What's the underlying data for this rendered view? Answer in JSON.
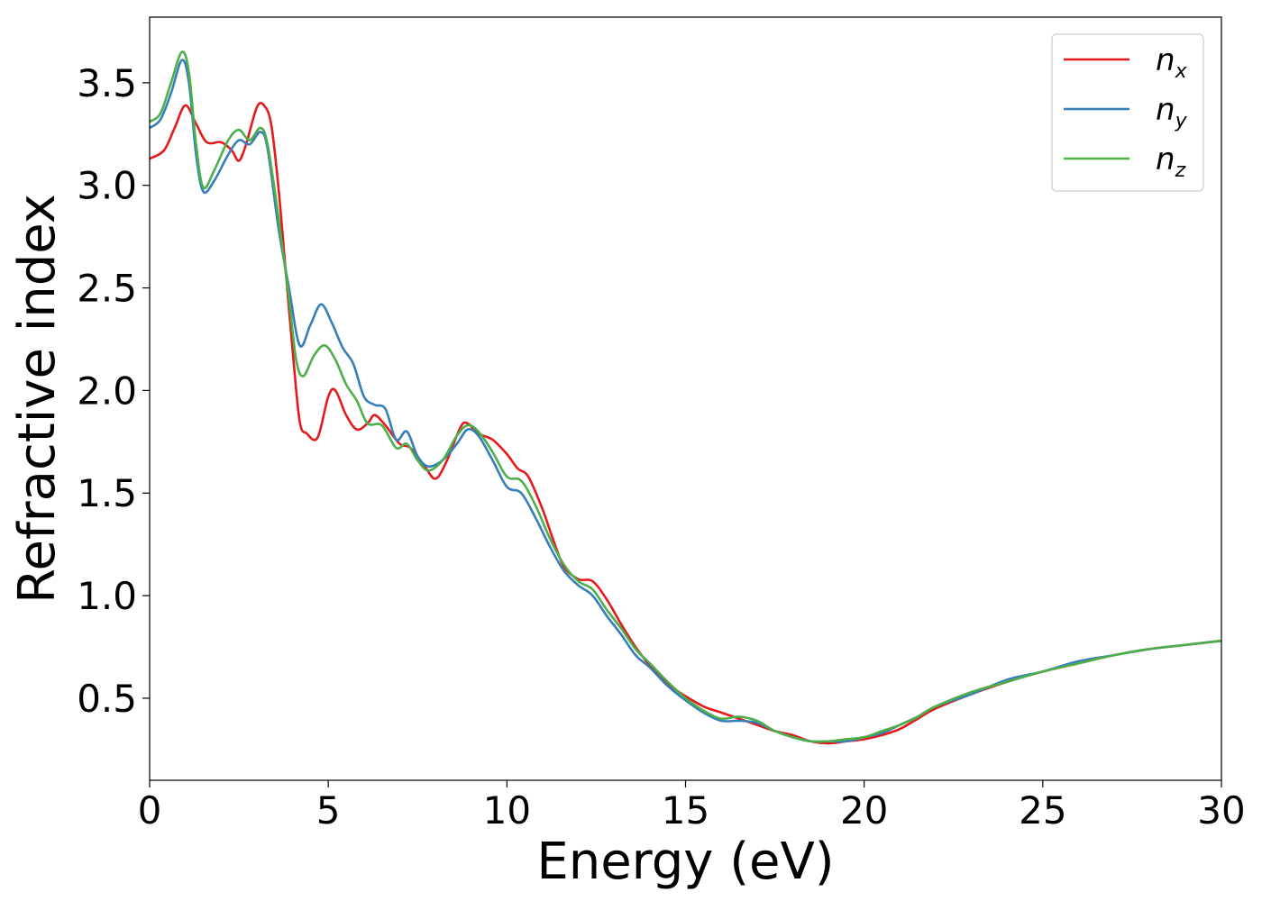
{
  "chart_data": {
    "type": "line",
    "title": "",
    "xlabel": "Energy (eV)",
    "ylabel": "Refractive index",
    "xlim": [
      0,
      30
    ],
    "ylim": [
      0.1,
      3.82
    ],
    "xticks": [
      0,
      5,
      10,
      15,
      20,
      25,
      30
    ],
    "xtick_labels": [
      "0",
      "5",
      "10",
      "15",
      "20",
      "25",
      "30"
    ],
    "yticks": [
      0.5,
      1.0,
      1.5,
      2.0,
      2.5,
      3.0,
      3.5
    ],
    "ytick_labels": [
      "0.5",
      "1.0",
      "1.5",
      "2.0",
      "2.5",
      "3.0",
      "3.5"
    ],
    "grid": false,
    "legend": "top-right",
    "series": [
      {
        "name": "n",
        "subscript": "x",
        "color": "#e41a1c",
        "points": [
          [
            0,
            3.13
          ],
          [
            0.4,
            3.17
          ],
          [
            0.7,
            3.28
          ],
          [
            1.0,
            3.39
          ],
          [
            1.3,
            3.3
          ],
          [
            1.6,
            3.21
          ],
          [
            2.0,
            3.21
          ],
          [
            2.3,
            3.17
          ],
          [
            2.5,
            3.12
          ],
          [
            2.7,
            3.2
          ],
          [
            3.0,
            3.38
          ],
          [
            3.2,
            3.39
          ],
          [
            3.4,
            3.3
          ],
          [
            3.6,
            3.0
          ],
          [
            3.8,
            2.6
          ],
          [
            4.0,
            2.2
          ],
          [
            4.2,
            1.85
          ],
          [
            4.4,
            1.79
          ],
          [
            4.7,
            1.77
          ],
          [
            5.0,
            1.97
          ],
          [
            5.2,
            2.0
          ],
          [
            5.5,
            1.88
          ],
          [
            5.8,
            1.81
          ],
          [
            6.1,
            1.84
          ],
          [
            6.3,
            1.88
          ],
          [
            6.6,
            1.83
          ],
          [
            7.0,
            1.74
          ],
          [
            7.3,
            1.72
          ],
          [
            7.7,
            1.63
          ],
          [
            8.0,
            1.57
          ],
          [
            8.3,
            1.65
          ],
          [
            8.7,
            1.82
          ],
          [
            8.9,
            1.84
          ],
          [
            9.2,
            1.79
          ],
          [
            9.6,
            1.76
          ],
          [
            10.0,
            1.69
          ],
          [
            10.3,
            1.62
          ],
          [
            10.6,
            1.58
          ],
          [
            11.0,
            1.42
          ],
          [
            11.3,
            1.27
          ],
          [
            11.6,
            1.14
          ],
          [
            12.0,
            1.08
          ],
          [
            12.4,
            1.07
          ],
          [
            12.8,
            0.98
          ],
          [
            13.2,
            0.86
          ],
          [
            13.6,
            0.75
          ],
          [
            14.0,
            0.66
          ],
          [
            14.5,
            0.57
          ],
          [
            15.0,
            0.51
          ],
          [
            15.5,
            0.46
          ],
          [
            16.0,
            0.43
          ],
          [
            16.5,
            0.4
          ],
          [
            17.0,
            0.37
          ],
          [
            17.5,
            0.34
          ],
          [
            18.0,
            0.32
          ],
          [
            18.5,
            0.29
          ],
          [
            19.0,
            0.28
          ],
          [
            19.5,
            0.29
          ],
          [
            20.0,
            0.3
          ],
          [
            20.5,
            0.32
          ],
          [
            21.0,
            0.35
          ],
          [
            21.5,
            0.4
          ],
          [
            22.0,
            0.45
          ],
          [
            23.0,
            0.52
          ],
          [
            24.0,
            0.58
          ],
          [
            25.0,
            0.63
          ],
          [
            26.0,
            0.67
          ],
          [
            27.0,
            0.71
          ],
          [
            28.0,
            0.74
          ],
          [
            29.0,
            0.76
          ],
          [
            30.0,
            0.78
          ]
        ]
      },
      {
        "name": "n",
        "subscript": "y",
        "color": "#377eb8",
        "points": [
          [
            0,
            3.28
          ],
          [
            0.3,
            3.32
          ],
          [
            0.6,
            3.45
          ],
          [
            0.9,
            3.61
          ],
          [
            1.1,
            3.5
          ],
          [
            1.3,
            3.15
          ],
          [
            1.5,
            2.97
          ],
          [
            1.8,
            3.02
          ],
          [
            2.2,
            3.15
          ],
          [
            2.5,
            3.22
          ],
          [
            2.8,
            3.2
          ],
          [
            3.1,
            3.26
          ],
          [
            3.3,
            3.18
          ],
          [
            3.6,
            2.8
          ],
          [
            3.9,
            2.5
          ],
          [
            4.2,
            2.22
          ],
          [
            4.5,
            2.32
          ],
          [
            4.8,
            2.42
          ],
          [
            5.1,
            2.33
          ],
          [
            5.4,
            2.21
          ],
          [
            5.7,
            2.13
          ],
          [
            6.0,
            1.97
          ],
          [
            6.3,
            1.93
          ],
          [
            6.6,
            1.91
          ],
          [
            6.9,
            1.76
          ],
          [
            7.2,
            1.8
          ],
          [
            7.5,
            1.68
          ],
          [
            7.8,
            1.63
          ],
          [
            8.2,
            1.66
          ],
          [
            8.6,
            1.74
          ],
          [
            8.9,
            1.81
          ],
          [
            9.2,
            1.78
          ],
          [
            9.6,
            1.66
          ],
          [
            10.0,
            1.53
          ],
          [
            10.4,
            1.5
          ],
          [
            10.8,
            1.38
          ],
          [
            11.2,
            1.24
          ],
          [
            11.6,
            1.12
          ],
          [
            12.0,
            1.05
          ],
          [
            12.4,
            1.0
          ],
          [
            12.8,
            0.9
          ],
          [
            13.2,
            0.81
          ],
          [
            13.6,
            0.71
          ],
          [
            14.0,
            0.65
          ],
          [
            14.5,
            0.56
          ],
          [
            15.0,
            0.49
          ],
          [
            15.5,
            0.43
          ],
          [
            16.0,
            0.39
          ],
          [
            16.5,
            0.39
          ],
          [
            17.0,
            0.38
          ],
          [
            17.5,
            0.34
          ],
          [
            18.0,
            0.31
          ],
          [
            18.5,
            0.29
          ],
          [
            19.0,
            0.29
          ],
          [
            19.5,
            0.29
          ],
          [
            20.0,
            0.31
          ],
          [
            20.5,
            0.33
          ],
          [
            21.0,
            0.37
          ],
          [
            21.5,
            0.41
          ],
          [
            22.0,
            0.46
          ],
          [
            23.0,
            0.52
          ],
          [
            24.0,
            0.59
          ],
          [
            25.0,
            0.63
          ],
          [
            26.0,
            0.68
          ],
          [
            27.0,
            0.71
          ],
          [
            28.0,
            0.74
          ],
          [
            29.0,
            0.76
          ],
          [
            30.0,
            0.78
          ]
        ]
      },
      {
        "name": "n",
        "subscript": "z",
        "color": "#4daf4a",
        "points": [
          [
            0,
            3.31
          ],
          [
            0.3,
            3.35
          ],
          [
            0.6,
            3.5
          ],
          [
            0.9,
            3.65
          ],
          [
            1.1,
            3.55
          ],
          [
            1.3,
            3.2
          ],
          [
            1.5,
            2.99
          ],
          [
            1.8,
            3.07
          ],
          [
            2.2,
            3.22
          ],
          [
            2.5,
            3.27
          ],
          [
            2.8,
            3.22
          ],
          [
            3.1,
            3.28
          ],
          [
            3.3,
            3.2
          ],
          [
            3.6,
            2.85
          ],
          [
            3.9,
            2.45
          ],
          [
            4.1,
            2.15
          ],
          [
            4.3,
            2.07
          ],
          [
            4.6,
            2.17
          ],
          [
            4.9,
            2.22
          ],
          [
            5.2,
            2.15
          ],
          [
            5.5,
            2.03
          ],
          [
            5.8,
            1.95
          ],
          [
            6.1,
            1.84
          ],
          [
            6.5,
            1.83
          ],
          [
            6.9,
            1.72
          ],
          [
            7.2,
            1.74
          ],
          [
            7.5,
            1.66
          ],
          [
            7.8,
            1.61
          ],
          [
            8.2,
            1.66
          ],
          [
            8.6,
            1.78
          ],
          [
            8.9,
            1.83
          ],
          [
            9.2,
            1.8
          ],
          [
            9.6,
            1.7
          ],
          [
            10.0,
            1.58
          ],
          [
            10.4,
            1.56
          ],
          [
            10.8,
            1.44
          ],
          [
            11.2,
            1.28
          ],
          [
            11.6,
            1.15
          ],
          [
            12.0,
            1.07
          ],
          [
            12.4,
            1.03
          ],
          [
            12.8,
            0.93
          ],
          [
            13.2,
            0.84
          ],
          [
            13.6,
            0.74
          ],
          [
            14.0,
            0.67
          ],
          [
            14.5,
            0.58
          ],
          [
            15.0,
            0.5
          ],
          [
            15.5,
            0.44
          ],
          [
            16.0,
            0.4
          ],
          [
            16.5,
            0.41
          ],
          [
            17.0,
            0.39
          ],
          [
            17.5,
            0.34
          ],
          [
            18.0,
            0.31
          ],
          [
            18.5,
            0.29
          ],
          [
            19.0,
            0.29
          ],
          [
            19.5,
            0.3
          ],
          [
            20.0,
            0.31
          ],
          [
            20.5,
            0.34
          ],
          [
            21.0,
            0.37
          ],
          [
            21.5,
            0.41
          ],
          [
            22.0,
            0.46
          ],
          [
            23.0,
            0.53
          ],
          [
            24.0,
            0.58
          ],
          [
            25.0,
            0.63
          ],
          [
            26.0,
            0.67
          ],
          [
            27.0,
            0.71
          ],
          [
            28.0,
            0.74
          ],
          [
            29.0,
            0.76
          ],
          [
            30.0,
            0.78
          ]
        ]
      }
    ]
  }
}
